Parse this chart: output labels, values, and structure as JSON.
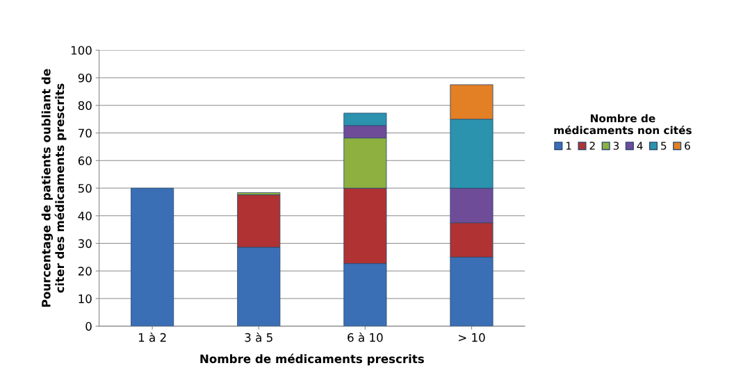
{
  "chart_data": {
    "type": "bar",
    "stacked": true,
    "xlabel": "Nombre de médicaments prescrits",
    "ylabel": "Pourcentage de patients oubliant de\nciter des médicaments prescrits",
    "legend_title": "Nombre de\nmédicaments non cités",
    "categories": [
      "1 à 2",
      "3 à 5",
      "6 à 10",
      "> 10"
    ],
    "series": [
      {
        "name": "1",
        "color": "#3a6fb5",
        "values": [
          50,
          28.6,
          22.7,
          25
        ]
      },
      {
        "name": "2",
        "color": "#b03232",
        "values": [
          null,
          19,
          27.3,
          12.5
        ]
      },
      {
        "name": "3",
        "color": "#8db040",
        "values": [
          null,
          0.8,
          18.2,
          null
        ]
      },
      {
        "name": "4",
        "color": "#6e4c98",
        "values": [
          null,
          null,
          4.5,
          12.5
        ]
      },
      {
        "name": "5",
        "color": "#2b93ae",
        "values": [
          null,
          null,
          4.5,
          25
        ]
      },
      {
        "name": "6",
        "color": "#e37f24",
        "values": [
          null,
          null,
          null,
          12.5
        ]
      }
    ],
    "ylim": [
      0,
      100
    ],
    "yticks": [
      0,
      10,
      20,
      30,
      40,
      50,
      60,
      70,
      80,
      90,
      100
    ],
    "grid": "y",
    "legend": "right"
  }
}
